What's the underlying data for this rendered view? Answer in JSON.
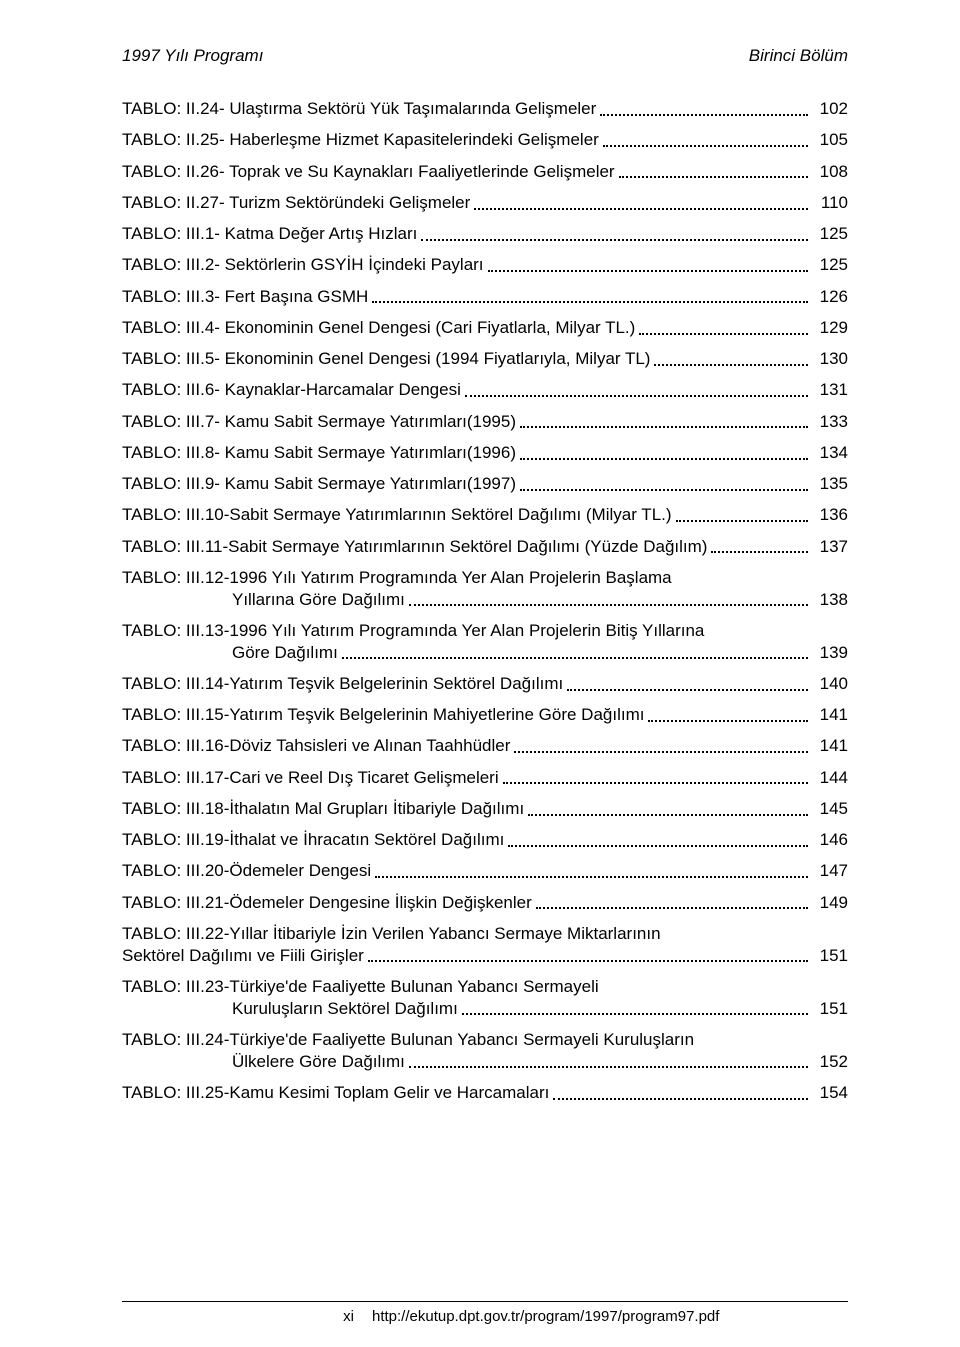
{
  "header": {
    "left": "1997 Yılı Programı",
    "right": "Birinci Bölüm"
  },
  "toc": [
    {
      "label": "TABLO: II.24- Ulaştırma Sektörü Yük Taşımalarında Gelişmeler",
      "page": "102"
    },
    {
      "label": "TABLO: II.25- Haberleşme Hizmet Kapasitelerindeki Gelişmeler",
      "page": "105"
    },
    {
      "label": "TABLO: II.26- Toprak ve Su Kaynakları Faaliyetlerinde Gelişmeler",
      "page": "108"
    },
    {
      "label": "TABLO: II.27- Turizm Sektöründeki Gelişmeler",
      "page": "110"
    },
    {
      "label": "TABLO: III.1- Katma Değer Artış Hızları",
      "page": "125"
    },
    {
      "label": "TABLO: III.2- Sektörlerin GSYİH İçindeki Payları",
      "page": "125"
    },
    {
      "label": "TABLO: III.3- Fert Başına GSMH",
      "page": "126"
    },
    {
      "label": "TABLO: III.4- Ekonominin Genel Dengesi (Cari Fiyatlarla, Milyar TL.)",
      "page": "129"
    },
    {
      "label": "TABLO: III.5- Ekonominin Genel Dengesi (1994 Fiyatlarıyla, Milyar TL)",
      "page": "130"
    },
    {
      "label": "TABLO: III.6- Kaynaklar-Harcamalar Dengesi",
      "page": "131"
    },
    {
      "label": "TABLO: III.7- Kamu Sabit Sermaye Yatırımları(1995)",
      "page": "133"
    },
    {
      "label": "TABLO: III.8- Kamu Sabit Sermaye Yatırımları(1996)",
      "page": "134"
    },
    {
      "label": "TABLO: III.9- Kamu Sabit Sermaye Yatırımları(1997)",
      "page": "135"
    },
    {
      "label": "TABLO: III.10-Sabit Sermaye Yatırımlarının Sektörel Dağılımı (Milyar TL.)",
      "page": "136"
    },
    {
      "label": "TABLO: III.11-Sabit Sermaye Yatırımlarının Sektörel Dağılımı (Yüzde Dağılım)",
      "page": "137"
    },
    {
      "multiline": true,
      "line1": "TABLO: III.12-1996 Yılı Yatırım Programında Yer Alan Projelerin Başlama",
      "line2": "Yıllarına Göre Dağılımı",
      "page": "138"
    },
    {
      "multiline": true,
      "line1": "TABLO: III.13-1996 Yılı Yatırım Programında Yer Alan Projelerin Bitiş Yıllarına",
      "line2": "Göre Dağılımı",
      "page": "139"
    },
    {
      "label": "TABLO: III.14-Yatırım Teşvik Belgelerinin Sektörel Dağılımı",
      "page": "140"
    },
    {
      "label": "TABLO: III.15-Yatırım Teşvik Belgelerinin Mahiyetlerine Göre Dağılımı",
      "page": "141"
    },
    {
      "label": "TABLO: III.16-Döviz Tahsisleri ve Alınan Taahhüdler",
      "page": "141"
    },
    {
      "label": "TABLO: III.17-Cari ve Reel Dış Ticaret Gelişmeleri",
      "page": "144"
    },
    {
      "label": "TABLO: III.18-İthalatın Mal Grupları İtibariyle Dağılımı",
      "page": "145"
    },
    {
      "label": "TABLO: III.19-İthalat ve İhracatın Sektörel Dağılımı",
      "page": "146"
    },
    {
      "label": "TABLO: III.20-Ödemeler Dengesi",
      "page": "147"
    },
    {
      "label": "TABLO: III.21-Ödemeler Dengesine İlişkin Değişkenler",
      "page": "149"
    },
    {
      "multiline": true,
      "noIndent": true,
      "line1": "TABLO: III.22-Yıllar İtibariyle İzin Verilen Yabancı Sermaye Miktarlarının",
      "line2": "Sektörel Dağılımı ve Fiili Girişler",
      "page": "151"
    },
    {
      "multiline": true,
      "line1": "TABLO: III.23-Türkiye'de Faaliyette Bulunan Yabancı Sermayeli",
      "line2": "Kuruluşların Sektörel Dağılımı",
      "page": "151"
    },
    {
      "multiline": true,
      "line1": "TABLO: III.24-Türkiye'de Faaliyette Bulunan Yabancı Sermayeli Kuruluşların",
      "line2": "Ülkelere Göre Dağılımı",
      "page": "152"
    },
    {
      "label": "TABLO: III.25-Kamu Kesimi Toplam Gelir ve Harcamaları",
      "page": "154"
    }
  ],
  "footer": {
    "roman": "xi",
    "url": "http://ekutup.dpt.gov.tr/program/1997/program97.pdf"
  }
}
